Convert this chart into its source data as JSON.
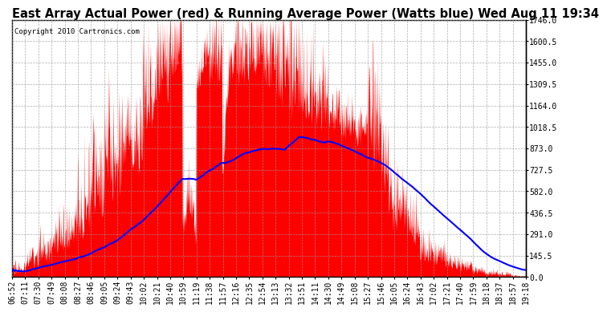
{
  "title": "East Array Actual Power (red) & Running Average Power (Watts blue) Wed Aug 11 19:34",
  "copyright": "Copyright 2010 Cartronics.com",
  "ylabel_right_ticks": [
    0.0,
    145.5,
    291.0,
    436.5,
    582.0,
    727.5,
    873.0,
    1018.5,
    1164.0,
    1309.5,
    1455.0,
    1600.5,
    1746.0
  ],
  "ymax": 1746.0,
  "ymin": 0.0,
  "bar_color": "#FF0000",
  "avg_color": "#0000FF",
  "background_color": "#FFFFFF",
  "grid_color": "#999999",
  "title_fontsize": 10.5,
  "tick_fontsize": 7,
  "x_tick_labels": [
    "06:52",
    "07:11",
    "07:30",
    "07:49",
    "08:08",
    "08:27",
    "08:46",
    "09:05",
    "09:24",
    "09:43",
    "10:02",
    "10:21",
    "10:40",
    "10:59",
    "11:19",
    "11:38",
    "11:57",
    "12:16",
    "12:35",
    "12:54",
    "13:13",
    "13:32",
    "13:51",
    "14:11",
    "14:30",
    "14:49",
    "15:08",
    "15:27",
    "15:46",
    "16:05",
    "16:24",
    "16:43",
    "17:02",
    "17:21",
    "17:40",
    "17:59",
    "18:18",
    "18:37",
    "18:57",
    "19:18"
  ]
}
